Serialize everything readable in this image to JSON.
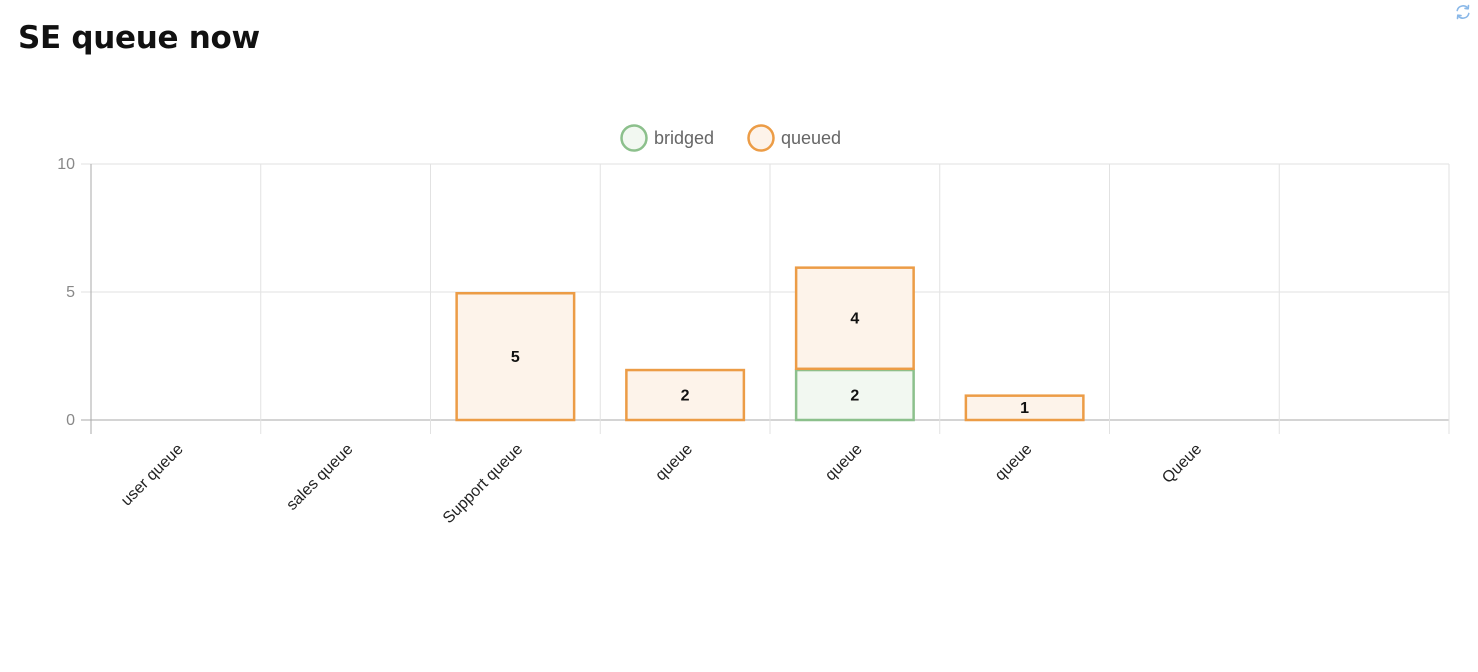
{
  "header": {
    "title": "SE queue now",
    "refresh_icon": "refresh-icon"
  },
  "colors": {
    "bridged_border": "#8cc08c",
    "bridged_fill": "#f2f8f1",
    "queued_border": "#ec9c46",
    "queued_fill": "#fdf3ea",
    "grid": "#e2e2e2",
    "axis": "#aaaaaa",
    "refresh": "#8ab8e8"
  },
  "chart_data": {
    "type": "bar",
    "stacked": true,
    "categories": [
      "user queue",
      "sales queue",
      "Support queue",
      "queue",
      "queue",
      "queue",
      "Queue",
      ""
    ],
    "series": [
      {
        "name": "bridged",
        "values": [
          0,
          0,
          0,
          0,
          2,
          0,
          0,
          0
        ]
      },
      {
        "name": "queued",
        "values": [
          0,
          0,
          5,
          2,
          4,
          1,
          0,
          0
        ]
      }
    ],
    "title": "",
    "xlabel": "",
    "ylabel": "",
    "ylim": [
      0,
      10
    ],
    "yticks": [
      0,
      5,
      10
    ],
    "grid": true,
    "legend_position": "top-center"
  }
}
